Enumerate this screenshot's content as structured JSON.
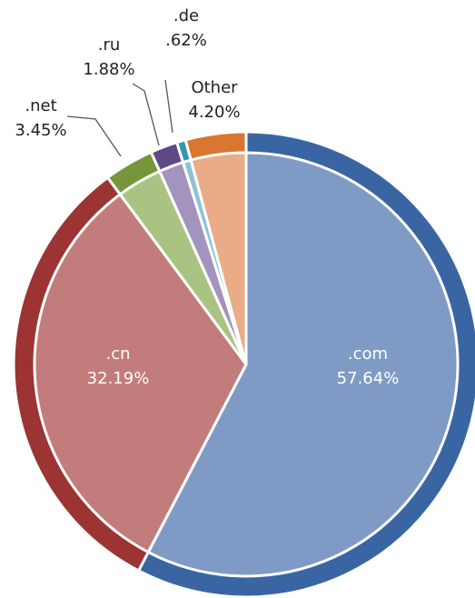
{
  "chart_data": {
    "type": "pie",
    "categories": [
      ".com",
      ".cn",
      ".net",
      ".ru",
      ".de",
      "Other"
    ],
    "values": [
      57.64,
      32.19,
      3.45,
      1.88,
      0.62,
      4.2
    ],
    "value_labels": [
      "57.64%",
      "32.19%",
      "3.45%",
      "1.88%",
      ".62%",
      "4.20%"
    ],
    "colors": [
      "#3a65a3",
      "#9b3433",
      "#75963a",
      "#5e4886",
      "#3496b0",
      "#d9762f"
    ],
    "inner_colors": [
      "#7f9bc5",
      "#c27c7b",
      "#aac383",
      "#a394bf",
      "#8bc3d4",
      "#e9ac86"
    ]
  }
}
